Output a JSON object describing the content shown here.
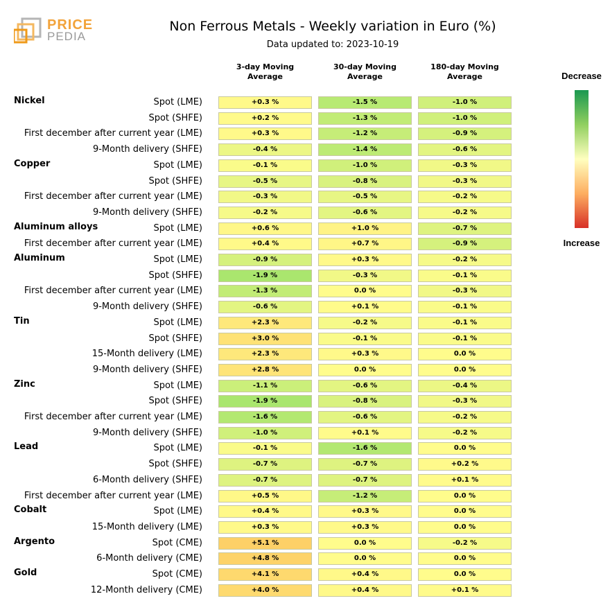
{
  "logo": {
    "word1": "PRICE",
    "word2": "PEDIA"
  },
  "chart_data": {
    "type": "table",
    "title": "Non Ferrous Metals - Weekly variation in Euro (%)",
    "subtitle": "Data updated to: 2023-10-19",
    "columns": [
      "3-day Moving Average",
      "30-day Moving Average",
      "180-day Moving Average"
    ],
    "legend": {
      "top": "Decrease",
      "bottom": "Increase"
    },
    "groups": [
      {
        "name": "Nickel",
        "rows": [
          {
            "label": "Spot (LME)",
            "values": [
              "+0.3 %",
              "-1.5 %",
              "-1.0 %"
            ]
          },
          {
            "label": "Spot (SHFE)",
            "values": [
              "+0.2 %",
              "-1.3 %",
              "-1.0 %"
            ]
          },
          {
            "label": "First december after current year (LME)",
            "values": [
              "+0.3 %",
              "-1.2 %",
              "-0.9 %"
            ]
          },
          {
            "label": "9-Month delivery (SHFE)",
            "values": [
              "-0.4 %",
              "-1.4 %",
              "-0.6 %"
            ]
          }
        ]
      },
      {
        "name": "Copper",
        "rows": [
          {
            "label": "Spot (LME)",
            "values": [
              "-0.1 %",
              "-1.0 %",
              "-0.3 %"
            ]
          },
          {
            "label": "Spot (SHFE)",
            "values": [
              "-0.5 %",
              "-0.8 %",
              "-0.3 %"
            ]
          },
          {
            "label": "First december after current year (LME)",
            "values": [
              "-0.3 %",
              "-0.5 %",
              "-0.2 %"
            ]
          },
          {
            "label": "9-Month delivery (SHFE)",
            "values": [
              "-0.2 %",
              "-0.6 %",
              "-0.2 %"
            ]
          }
        ]
      },
      {
        "name": "Aluminum alloys",
        "rows": [
          {
            "label": "Spot (LME)",
            "values": [
              "+0.6 %",
              "+1.0 %",
              "-0.7 %"
            ]
          },
          {
            "label": "First december after current year (LME)",
            "values": [
              "+0.4 %",
              "+0.7 %",
              "-0.9 %"
            ]
          }
        ]
      },
      {
        "name": "Aluminum",
        "rows": [
          {
            "label": "Spot (LME)",
            "values": [
              "-0.9 %",
              "+0.3 %",
              "-0.2 %"
            ]
          },
          {
            "label": "Spot (SHFE)",
            "values": [
              "-1.9 %",
              "-0.3 %",
              "-0.1 %"
            ]
          },
          {
            "label": "First december after current year (LME)",
            "values": [
              "-1.3 %",
              "0.0 %",
              "-0.3 %"
            ]
          },
          {
            "label": "9-Month delivery (SHFE)",
            "values": [
              "-0.6 %",
              "+0.1 %",
              "-0.1 %"
            ]
          }
        ]
      },
      {
        "name": "Tin",
        "rows": [
          {
            "label": "Spot (LME)",
            "values": [
              "+2.3 %",
              "-0.2 %",
              "-0.1 %"
            ]
          },
          {
            "label": "Spot (SHFE)",
            "values": [
              "+3.0 %",
              "-0.1 %",
              "-0.1 %"
            ]
          },
          {
            "label": "15-Month delivery (LME)",
            "values": [
              "+2.3 %",
              "+0.3 %",
              "0.0 %"
            ]
          },
          {
            "label": "9-Month delivery (SHFE)",
            "values": [
              "+2.8 %",
              "0.0 %",
              "0.0 %"
            ]
          }
        ]
      },
      {
        "name": "Zinc",
        "rows": [
          {
            "label": "Spot (LME)",
            "values": [
              "-1.1 %",
              "-0.6 %",
              "-0.4 %"
            ]
          },
          {
            "label": "Spot (SHFE)",
            "values": [
              "-1.9 %",
              "-0.8 %",
              "-0.3 %"
            ]
          },
          {
            "label": "First december after current year (LME)",
            "values": [
              "-1.6 %",
              "-0.6 %",
              "-0.2 %"
            ]
          },
          {
            "label": "9-Month delivery (SHFE)",
            "values": [
              "-1.0 %",
              "+0.1 %",
              "-0.2 %"
            ]
          }
        ]
      },
      {
        "name": "Lead",
        "rows": [
          {
            "label": "Spot (LME)",
            "values": [
              "-0.1 %",
              "-1.6 %",
              "0.0 %"
            ]
          },
          {
            "label": "Spot (SHFE)",
            "values": [
              "-0.7 %",
              "-0.7 %",
              "+0.2 %"
            ]
          },
          {
            "label": "6-Month delivery (SHFE)",
            "values": [
              "-0.7 %",
              "-0.7 %",
              "+0.1 %"
            ]
          },
          {
            "label": "First december after current year (LME)",
            "values": [
              "+0.5 %",
              "-1.2 %",
              "0.0 %"
            ]
          }
        ]
      },
      {
        "name": "Cobalt",
        "rows": [
          {
            "label": "Spot (LME)",
            "values": [
              "+0.4 %",
              "+0.3 %",
              "0.0 %"
            ]
          },
          {
            "label": "15-Month delivery (LME)",
            "values": [
              "+0.3 %",
              "+0.3 %",
              "0.0 %"
            ]
          }
        ]
      },
      {
        "name": "Argento",
        "rows": [
          {
            "label": "Spot (CME)",
            "values": [
              "+5.1 %",
              "0.0 %",
              "-0.2 %"
            ]
          },
          {
            "label": "6-Month delivery (CME)",
            "values": [
              "+4.8 %",
              "0.0 %",
              "0.0 %"
            ]
          }
        ]
      },
      {
        "name": "Gold",
        "rows": [
          {
            "label": "Spot (CME)",
            "values": [
              "+4.1 %",
              "+0.4 %",
              "0.0 %"
            ]
          },
          {
            "label": "12-Month delivery (CME)",
            "values": [
              "+4.0 %",
              "+0.4 %",
              "+0.1 %"
            ]
          }
        ]
      }
    ]
  }
}
